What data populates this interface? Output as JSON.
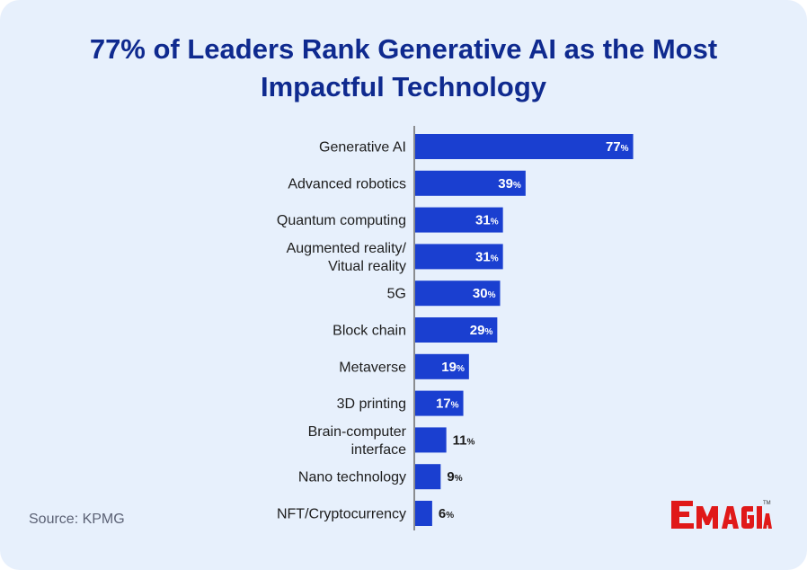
{
  "title": "77% of Leaders Rank Generative AI as the Most Impactful Technology",
  "source": "Source: KPMG",
  "logo_text": "EMAGIA",
  "colors": {
    "background": "#e7f0fc",
    "bar": "#1a3fd0",
    "title": "#0f2a8f",
    "axis": "#6b6b6b",
    "logo": "#e01919"
  },
  "chart_data": {
    "type": "bar",
    "orientation": "horizontal",
    "title": "77% of Leaders Rank Generative AI as the Most Impactful Technology",
    "categories": [
      [
        "Generative AI"
      ],
      [
        "Advanced robotics"
      ],
      [
        "Quantum computing"
      ],
      [
        "Augmented reality/",
        "Vitual reality"
      ],
      [
        "5G"
      ],
      [
        "Block chain"
      ],
      [
        "Metaverse"
      ],
      [
        "3D printing"
      ],
      [
        "Brain-computer",
        "interface"
      ],
      [
        "Nano technology"
      ],
      [
        "NFT/Cryptocurrency"
      ]
    ],
    "values": [
      77,
      39,
      31,
      31,
      30,
      29,
      19,
      17,
      11,
      9,
      6
    ],
    "value_suffix": "%",
    "xlabel": "",
    "ylabel": "",
    "xlim": [
      0,
      100
    ],
    "grid": false,
    "legend": "none"
  }
}
